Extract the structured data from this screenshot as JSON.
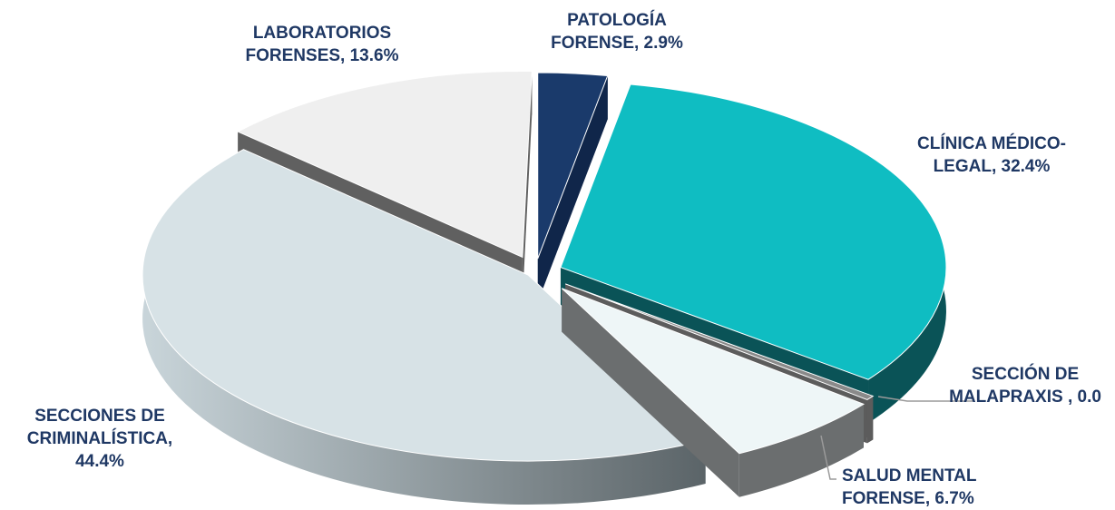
{
  "chart_data": {
    "type": "pie",
    "title": "",
    "style": "3d-exploded",
    "slices": [
      {
        "line1": "PATOLOGÍA",
        "line2": "FORENSE, 2.9%",
        "value": 2.9,
        "color": "#1a3a6b",
        "side": "#10264a"
      },
      {
        "line1": "CLÍNICA MÉDICO-",
        "line2": "LEGAL, 32.4%",
        "value": 32.4,
        "color": "#0fbdc2",
        "side": "#0a5357"
      },
      {
        "line1": "SECCIÓN DE",
        "line2": "MALAPRAXIS , 0.0",
        "value": 0.0,
        "color": "#8a8a8a",
        "side": "#5c5c5c"
      },
      {
        "line1": "SALUD MENTAL",
        "line2": "FORENSE, 6.7%",
        "value": 6.7,
        "color": "#eef6f7",
        "side": "#6b6e6f"
      },
      {
        "line1": "SECCIONES DE",
        "line2": "CRIMINALÍSTICA,",
        "line3": "44.4%",
        "value": 44.4,
        "color": "#d7e2e6",
        "side": "#9aa3a8"
      },
      {
        "line1": "LABORATORIOS",
        "line2": "FORENSES, 13.6%",
        "value": 13.6,
        "color": "#efefef",
        "side": "#606060"
      }
    ],
    "legend": "none",
    "data_labels": "outside"
  }
}
